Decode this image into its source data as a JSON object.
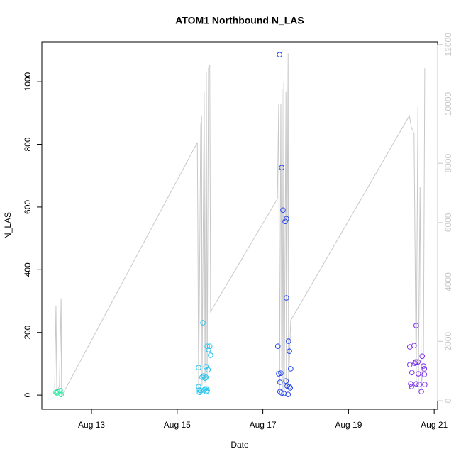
{
  "chart_data": {
    "type": "scatter",
    "title": "ATOM1 Northbound N_LAS",
    "x_label": "Date",
    "y_label": "N_LAS",
    "xlim": [
      11.84,
      21.08
    ],
    "ylim": [
      -45,
      1127
    ],
    "y2lim": [
      -287,
      12091
    ],
    "xticks": [
      {
        "value": 13,
        "label": "Aug 13"
      },
      {
        "value": 15,
        "label": "Aug 15"
      },
      {
        "value": 17,
        "label": "Aug 17"
      },
      {
        "value": 19,
        "label": "Aug 19"
      },
      {
        "value": 21,
        "label": "Aug 21"
      }
    ],
    "yticks": [
      0,
      200,
      400,
      600,
      800,
      1000
    ],
    "y2ticks": [
      0,
      2000,
      4000,
      6000,
      8000,
      10000,
      12000
    ],
    "y2_color": "#c8c8c8",
    "series": [
      {
        "type": "line",
        "axis": "y2",
        "color": "#c8c8c8",
        "x": [
          12.14,
          12.17,
          12.19,
          12.25,
          12.29,
          12.3,
          15.47,
          15.48,
          15.5,
          15.55,
          15.57,
          15.58,
          15.63,
          15.65,
          15.68,
          15.7,
          15.73,
          15.76,
          15.78,
          17.34,
          17.37,
          17.39,
          17.42,
          17.44,
          17.45,
          17.47,
          17.49,
          17.5,
          17.54,
          17.55,
          17.59,
          17.6,
          17.65,
          20.42,
          20.47,
          20.5,
          20.53,
          20.58,
          20.62,
          20.63,
          20.67,
          20.7,
          20.75,
          20.78
        ],
        "values": [
          400,
          3200,
          300,
          500,
          3450,
          150,
          8700,
          6400,
          300,
          9300,
          9600,
          500,
          10400,
          600,
          11100,
          700,
          11200,
          11300,
          3000,
          6800,
          10000,
          200,
          10000,
          1100,
          10500,
          200,
          10750,
          300,
          10400,
          400,
          11700,
          500,
          2700,
          9600,
          9200,
          9100,
          9000,
          600,
          9900,
          300,
          7200,
          400,
          1500,
          11200
        ]
      },
      {
        "type": "scatter",
        "color": "#2fe6a3",
        "x": [
          12.17,
          12.19,
          12.21,
          12.27,
          12.29
        ],
        "values": [
          9,
          7,
          11,
          14,
          2
        ]
      },
      {
        "type": "scatter",
        "color": "#26c4ee",
        "x": [
          15.5,
          15.5,
          15.52,
          15.52,
          15.55,
          15.58,
          15.6,
          15.62,
          15.63,
          15.65,
          15.65,
          15.67,
          15.67,
          15.68,
          15.68,
          15.7,
          15.7,
          15.72,
          15.73,
          15.76,
          15.78
        ],
        "values": [
          88,
          27,
          16,
          9,
          14,
          57,
          231,
          61,
          16,
          54,
          20,
          91,
          57,
          20,
          11,
          156,
          14,
          81,
          145,
          156,
          127
        ]
      },
      {
        "type": "scatter",
        "color": "#2244ee",
        "x": [
          17.39,
          17.35,
          17.37,
          17.42,
          17.44,
          17.4,
          17.4,
          17.44,
          17.47,
          17.49,
          17.52,
          17.54,
          17.55,
          17.55,
          17.57,
          17.59,
          17.6,
          17.62,
          17.62,
          17.64,
          17.65
        ],
        "values": [
          1086,
          156,
          68,
          70,
          726,
          41,
          11,
          7,
          590,
          5,
          554,
          45,
          563,
          310,
          29,
          2,
          172,
          27,
          140,
          23,
          84
        ]
      },
      {
        "type": "scatter",
        "color": "#7a30ee",
        "x": [
          20.43,
          20.43,
          20.45,
          20.47,
          20.48,
          20.53,
          20.55,
          20.57,
          20.58,
          20.58,
          20.62,
          20.63,
          20.65,
          20.7,
          20.72,
          20.75,
          20.77,
          20.77,
          20.78
        ],
        "values": [
          154,
          97,
          36,
          27,
          72,
          158,
          102,
          106,
          222,
          36,
          106,
          68,
          34,
          11,
          124,
          93,
          84,
          66,
          34
        ]
      }
    ]
  }
}
